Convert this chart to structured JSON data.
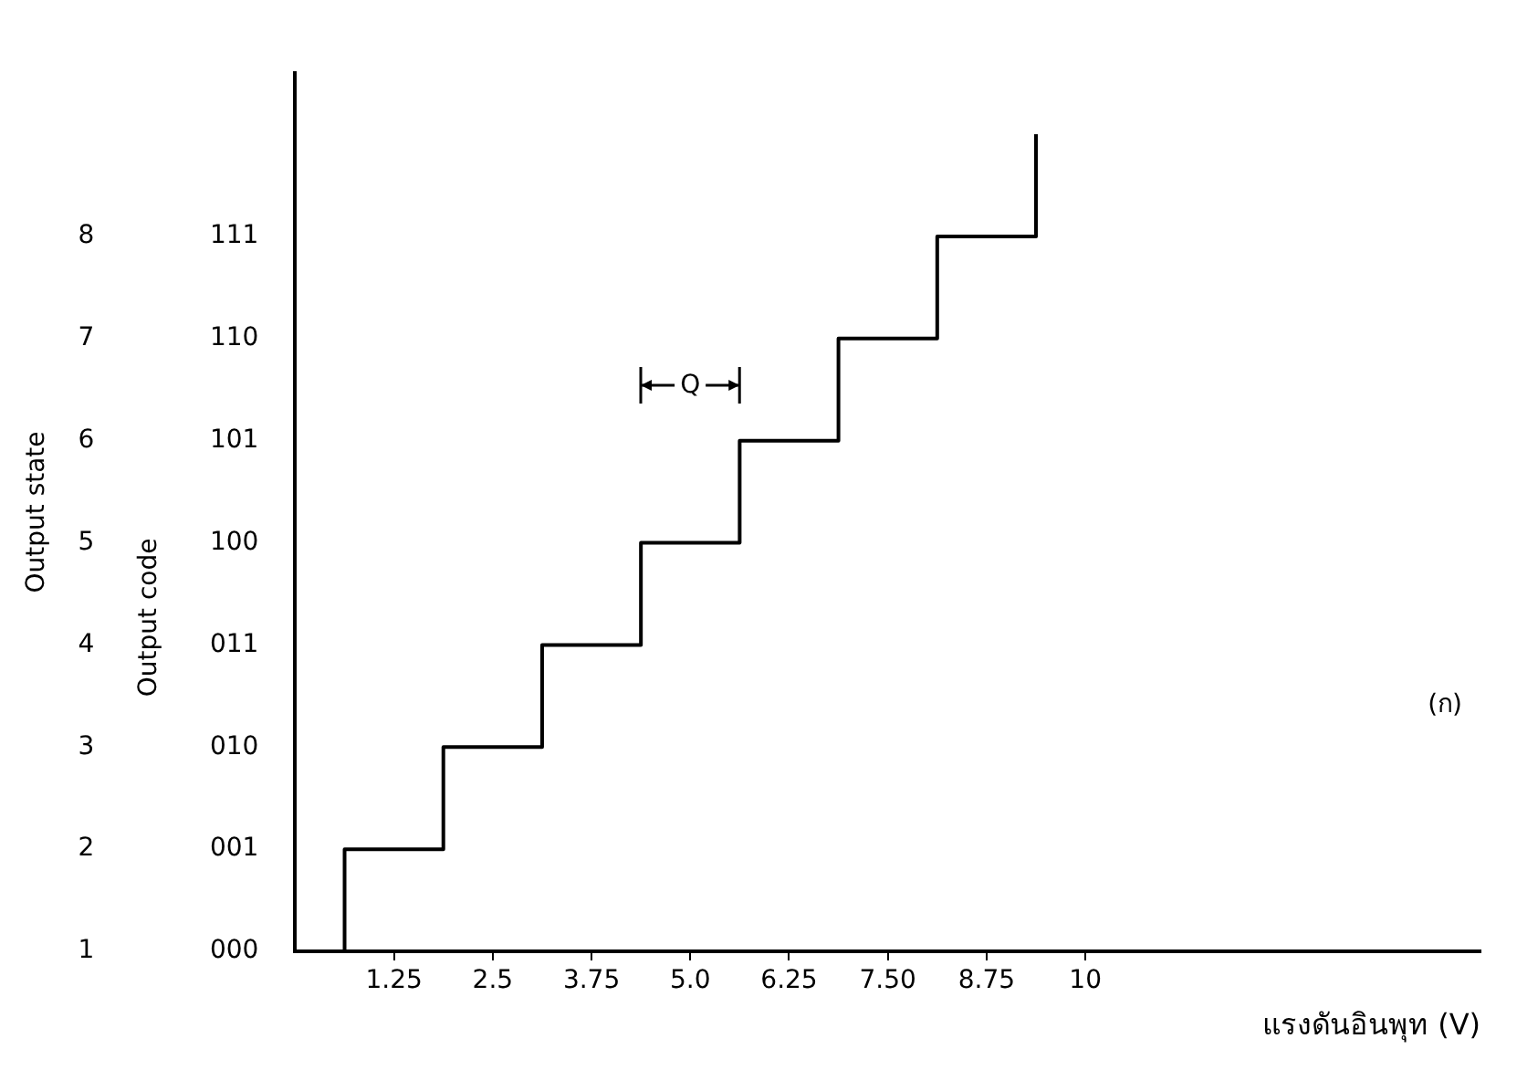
{
  "chart_data": {
    "type": "step",
    "x": [
      0,
      0.625,
      1.875,
      3.125,
      4.375,
      5.625,
      6.875,
      8.125,
      9.375
    ],
    "values": [
      1,
      2,
      3,
      4,
      5,
      6,
      7,
      8,
      9
    ],
    "color": "#000000",
    "xlabel": "แรงดันอินพุท (V)",
    "ylabel": "Output state",
    "xlim": [
      0,
      15
    ],
    "xticks": [
      1.25,
      2.5,
      3.75,
      {
        "value": 5,
        "label": "5.0"
      },
      6.25,
      {
        "value": 7.5,
        "label": "7.50"
      },
      8.75,
      10
    ],
    "ylim": [
      1,
      9.6
    ],
    "yticks": [
      1,
      2,
      3,
      4,
      5,
      6,
      7,
      8
    ],
    "annotations": [
      "Q",
      "(ก)",
      "Output code",
      "000",
      "001",
      "010",
      "011",
      "100",
      "101",
      "110",
      "111"
    ],
    "grid": false,
    "legend": false,
    "marker": "none"
  }
}
